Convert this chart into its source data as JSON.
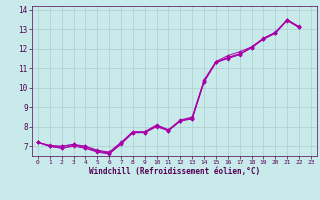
{
  "xlabel": "Windchill (Refroidissement éolien,°C)",
  "bg_color": "#c8eaea",
  "line_color": "#aa00aa",
  "grid_color": "#aacccc",
  "ylim": [
    6.5,
    14.2
  ],
  "xlim": [
    -0.5,
    23.5
  ],
  "yticks": [
    7,
    8,
    9,
    10,
    11,
    12,
    13,
    14
  ],
  "xticks": [
    0,
    1,
    2,
    3,
    4,
    5,
    6,
    7,
    8,
    9,
    10,
    11,
    12,
    13,
    14,
    15,
    16,
    17,
    18,
    19,
    20,
    21,
    22,
    23
  ],
  "line1": [
    7.2,
    7.0,
    6.9,
    7.0,
    6.9,
    6.7,
    6.6,
    7.1,
    7.7,
    7.7,
    8.0,
    7.8,
    8.3,
    8.4,
    10.3,
    11.3,
    11.5,
    11.7,
    12.1,
    12.5,
    12.8,
    13.5,
    13.1
  ],
  "line2": [
    7.2,
    7.0,
    6.9,
    7.05,
    7.0,
    6.75,
    6.65,
    7.15,
    7.72,
    7.72,
    8.05,
    7.82,
    8.32,
    8.42,
    10.32,
    11.32,
    11.55,
    11.72,
    12.05,
    12.52,
    12.82,
    13.48,
    13.1
  ],
  "line3": [
    7.2,
    7.0,
    7.0,
    7.1,
    7.0,
    6.8,
    6.7,
    7.2,
    7.75,
    7.75,
    8.1,
    7.85,
    8.35,
    8.5,
    10.4,
    11.35,
    11.65,
    11.85,
    12.1,
    12.55,
    12.85,
    13.5,
    13.15
  ],
  "line4": [
    7.2,
    7.05,
    7.0,
    7.1,
    6.9,
    6.75,
    6.65,
    7.15,
    7.7,
    7.7,
    8.05,
    7.8,
    8.3,
    8.45,
    10.35,
    11.3,
    11.55,
    11.75,
    12.05,
    12.5,
    12.8,
    13.45,
    13.1
  ]
}
